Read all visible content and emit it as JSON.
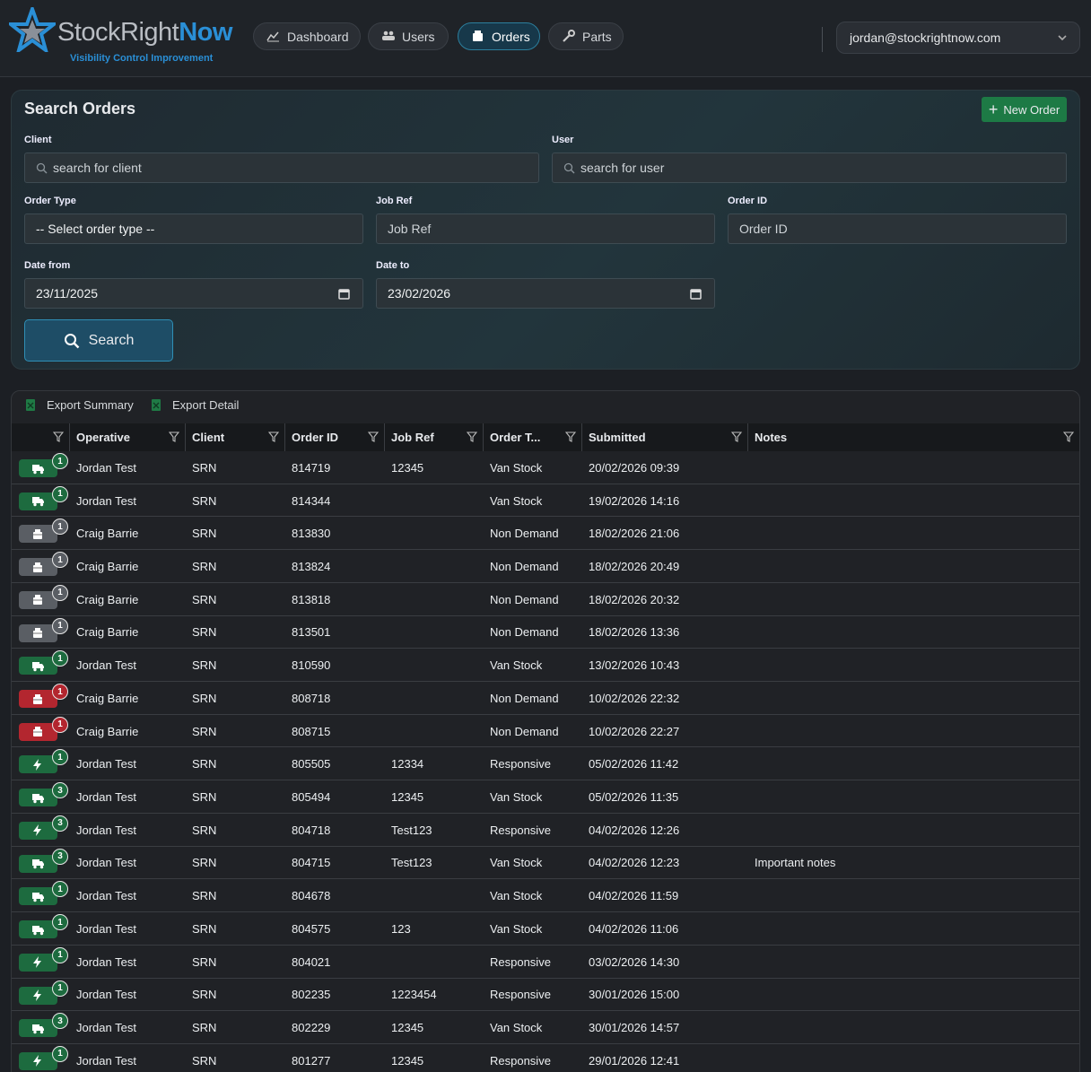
{
  "header": {
    "brand_main": "StockRight",
    "brand_accent": "Now",
    "tagline": "Visibility Control Improvement",
    "nav": [
      "Dashboard",
      "Users",
      "Orders",
      "Parts"
    ],
    "active_nav": 2,
    "user": "jordan@stockrightnow.com"
  },
  "search": {
    "title": "Search Orders",
    "new_order": "New Order",
    "client": {
      "label": "Client",
      "placeholder": "search for client"
    },
    "user": {
      "label": "User",
      "placeholder": "search for user"
    },
    "order_type": {
      "label": "Order Type",
      "value": "-- Select order type --"
    },
    "job_ref": {
      "label": "Job Ref",
      "placeholder": "Job Ref"
    },
    "order_id": {
      "label": "Order ID",
      "placeholder": "Order ID"
    },
    "date_from": {
      "label": "Date from",
      "value": "23/11/2025"
    },
    "date_to": {
      "label": "Date to",
      "value": "23/02/2026"
    },
    "button": "Search"
  },
  "table": {
    "exports": [
      "Export Summary",
      "Export Detail"
    ],
    "columns": [
      "Operative",
      "Client",
      "Order ID",
      "Job Ref",
      "Order T...",
      "Submitted",
      "Notes"
    ],
    "rows": [
      {
        "badge": 1,
        "icon": "truck",
        "color": "#1d6b3f",
        "cells": [
          "Jordan Test",
          "SRN",
          "814719",
          "12345",
          "Van Stock",
          "20/02/2026 09:39",
          null
        ]
      },
      {
        "badge": 1,
        "icon": "truck",
        "color": "#1d6b3f",
        "cells": [
          "Jordan Test",
          "SRN",
          "814344",
          null,
          "Van Stock",
          "19/02/2026 14:16",
          null
        ]
      },
      {
        "badge": 1,
        "icon": "box",
        "color": "#5a5e64",
        "cells": [
          "Craig Barrie",
          "SRN",
          "813830",
          null,
          "Non Demand",
          "18/02/2026 21:06",
          null
        ]
      },
      {
        "badge": 1,
        "icon": "box",
        "color": "#5a5e64",
        "cells": [
          "Craig Barrie",
          "SRN",
          "813824",
          null,
          "Non Demand",
          "18/02/2026 20:49",
          null
        ]
      },
      {
        "badge": 1,
        "icon": "box",
        "color": "#5a5e64",
        "cells": [
          "Craig Barrie",
          "SRN",
          "813818",
          null,
          "Non Demand",
          "18/02/2026 20:32",
          null
        ]
      },
      {
        "badge": 1,
        "icon": "box",
        "color": "#5a5e64",
        "cells": [
          "Craig Barrie",
          "SRN",
          "813501",
          null,
          "Non Demand",
          "18/02/2026 13:36",
          null
        ]
      },
      {
        "badge": 1,
        "icon": "truck",
        "color": "#1d6b3f",
        "cells": [
          "Jordan Test",
          "SRN",
          "810590",
          null,
          "Van Stock",
          "13/02/2026 10:43",
          null
        ]
      },
      {
        "badge": 1,
        "icon": "box",
        "color": "#b3262f",
        "cells": [
          "Craig Barrie",
          "SRN",
          "808718",
          null,
          "Non Demand",
          "10/02/2026 22:32",
          null
        ]
      },
      {
        "badge": 1,
        "icon": "box",
        "color": "#b3262f",
        "cells": [
          "Craig Barrie",
          "SRN",
          "808715",
          null,
          "Non Demand",
          "10/02/2026 22:27",
          null
        ]
      },
      {
        "badge": 1,
        "icon": "bolt",
        "color": "#1d6b3f",
        "cells": [
          "Jordan Test",
          "SRN",
          "805505",
          "12334",
          "Responsive",
          "05/02/2026 11:42",
          null
        ]
      },
      {
        "badge": 3,
        "icon": "truck",
        "color": "#1d6b3f",
        "cells": [
          "Jordan Test",
          "SRN",
          "805494",
          "12345",
          "Van Stock",
          "05/02/2026 11:35",
          null
        ]
      },
      {
        "badge": 3,
        "icon": "bolt",
        "color": "#1d6b3f",
        "cells": [
          "Jordan Test",
          "SRN",
          "804718",
          "Test123",
          "Responsive",
          "04/02/2026 12:26",
          null
        ]
      },
      {
        "badge": 3,
        "icon": "truck",
        "color": "#1d6b3f",
        "cells": [
          "Jordan Test",
          "SRN",
          "804715",
          "Test123",
          "Van Stock",
          "04/02/2026 12:23",
          "Important notes"
        ]
      },
      {
        "badge": 1,
        "icon": "truck",
        "color": "#1d6b3f",
        "cells": [
          "Jordan Test",
          "SRN",
          "804678",
          null,
          "Van Stock",
          "04/02/2026 11:59",
          null
        ]
      },
      {
        "badge": 1,
        "icon": "truck",
        "color": "#1d6b3f",
        "cells": [
          "Jordan Test",
          "SRN",
          "804575",
          "123",
          "Van Stock",
          "04/02/2026 11:06",
          null
        ]
      },
      {
        "badge": 1,
        "icon": "bolt",
        "color": "#1d6b3f",
        "cells": [
          "Jordan Test",
          "SRN",
          "804021",
          null,
          "Responsive",
          "03/02/2026 14:30",
          null
        ]
      },
      {
        "badge": 1,
        "icon": "bolt",
        "color": "#1d6b3f",
        "cells": [
          "Jordan Test",
          "SRN",
          "802235",
          "1223454",
          "Responsive",
          "30/01/2026 15:00",
          null
        ]
      },
      {
        "badge": 3,
        "icon": "truck",
        "color": "#1d6b3f",
        "cells": [
          "Jordan Test",
          "SRN",
          "802229",
          "12345",
          "Van Stock",
          "30/01/2026 14:57",
          null
        ]
      },
      {
        "badge": 1,
        "icon": "bolt",
        "color": "#1d6b3f",
        "cells": [
          "Jordan Test",
          "SRN",
          "801277",
          "12345",
          "Responsive",
          "29/01/2026 12:41",
          null
        ]
      }
    ]
  }
}
